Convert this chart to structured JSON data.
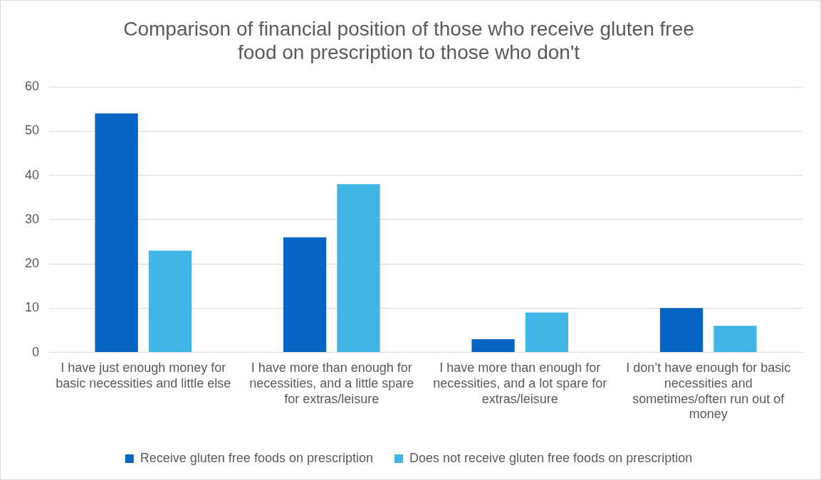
{
  "chart_data": {
    "type": "bar",
    "title": "Comparison of financial position of those who receive gluten free food on prescription to those who don't",
    "categories": [
      "I have just enough money for basic necessities and little else",
      "I have more than enough for necessities, and a little spare for extras/leisure",
      "I have more than enough for necessities, and a lot spare for extras/leisure",
      "I don’t have enough for basic necessities and sometimes/often run out of money"
    ],
    "series": [
      {
        "name": "Receive gluten free foods on prescription",
        "color": "#0563c1",
        "values": [
          54,
          26,
          3,
          10
        ]
      },
      {
        "name": "Does not receive gluten free foods on prescription",
        "color": "#41b6e6",
        "values": [
          23,
          38,
          9,
          6
        ]
      }
    ],
    "ylim": [
      0,
      60
    ],
    "yticks": [
      0,
      10,
      20,
      30,
      40,
      50,
      60
    ],
    "grid": "y",
    "legend": "bottom"
  }
}
